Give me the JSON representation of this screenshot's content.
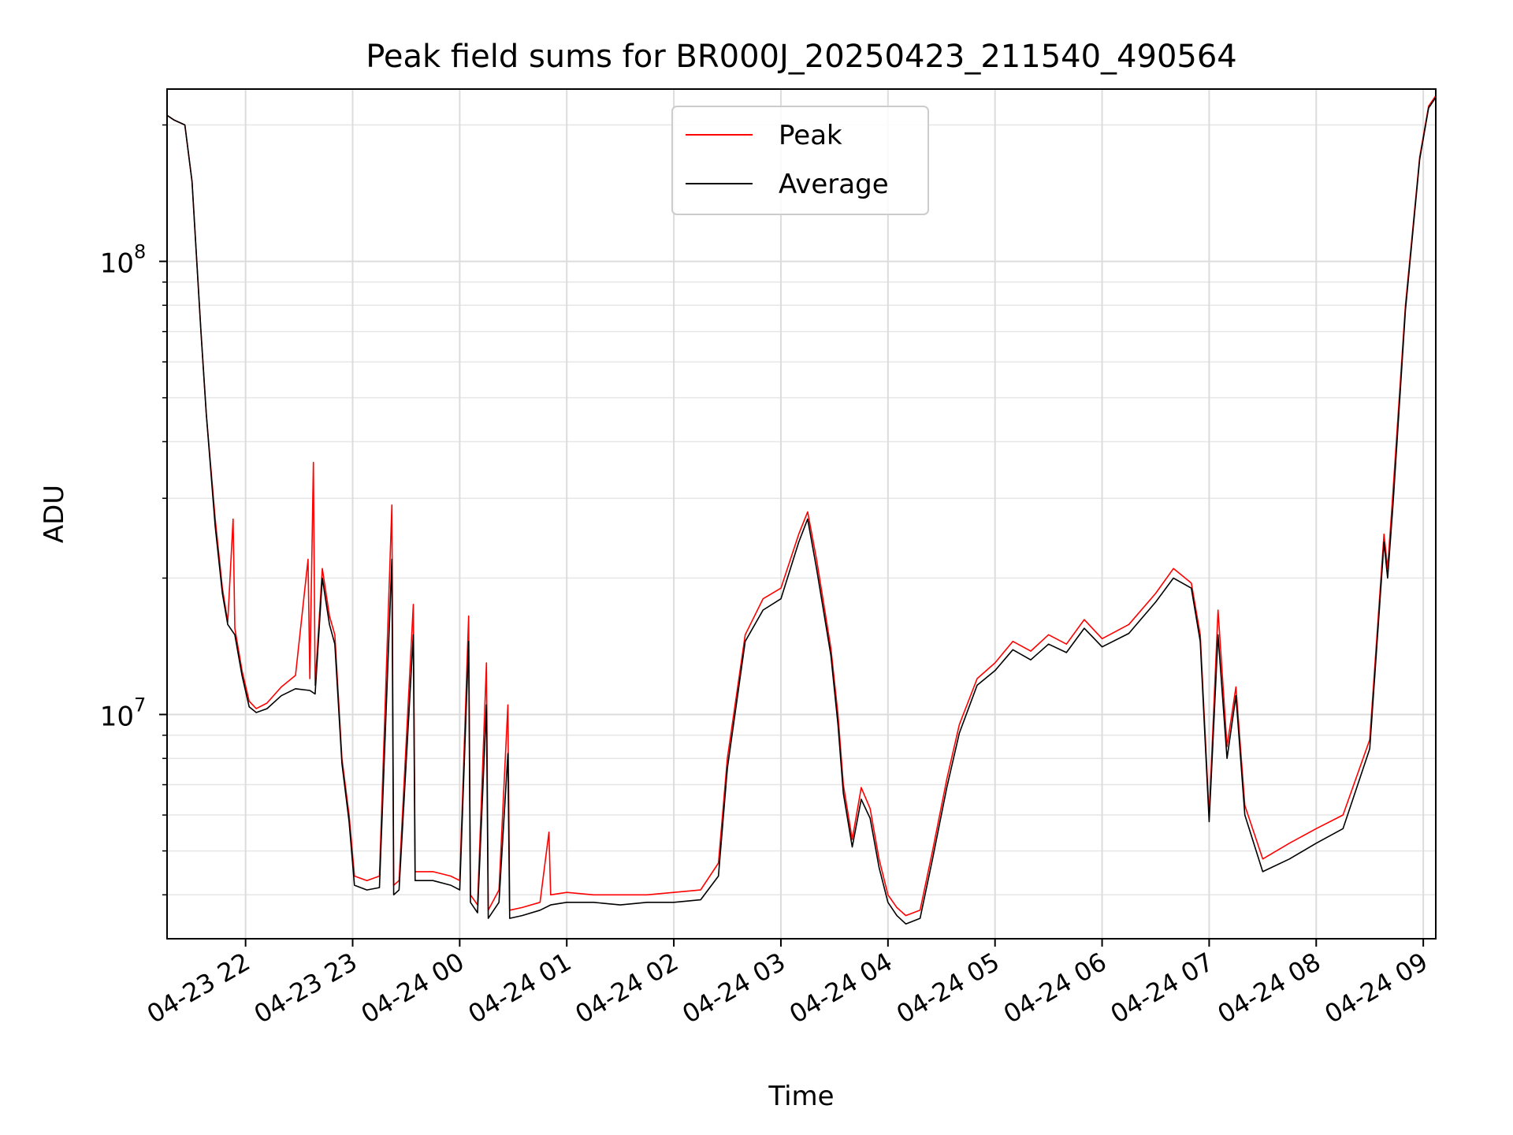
{
  "chart_data": {
    "type": "line",
    "title": "Peak field sums for BR000J_20250423_211540_490564",
    "xlabel": "Time",
    "ylabel": "ADU",
    "yscale": "log",
    "ylim": [
      3200000,
      240000000
    ],
    "xlim": [
      "2025-04-23 21:16",
      "2025-04-24 09:07"
    ],
    "grid": {
      "major": true,
      "minor_y": true
    },
    "legend_position": "upper center",
    "x_ticks": [
      {
        "t": "2025-04-23 22:00",
        "label": "04-23 22"
      },
      {
        "t": "2025-04-23 23:00",
        "label": "04-23 23"
      },
      {
        "t": "2025-04-24 00:00",
        "label": "04-24 00"
      },
      {
        "t": "2025-04-24 01:00",
        "label": "04-24 01"
      },
      {
        "t": "2025-04-24 02:00",
        "label": "04-24 02"
      },
      {
        "t": "2025-04-24 03:00",
        "label": "04-24 03"
      },
      {
        "t": "2025-04-24 04:00",
        "label": "04-24 04"
      },
      {
        "t": "2025-04-24 05:00",
        "label": "04-24 05"
      },
      {
        "t": "2025-04-24 06:00",
        "label": "04-24 06"
      },
      {
        "t": "2025-04-24 07:00",
        "label": "04-24 07"
      },
      {
        "t": "2025-04-24 08:00",
        "label": "04-24 08"
      },
      {
        "t": "2025-04-24 09:00",
        "label": "04-24 09"
      }
    ],
    "y_ticks": [
      {
        "value": 10000000,
        "base": "10",
        "exp": "7"
      },
      {
        "value": 100000000,
        "base": "10",
        "exp": "8"
      }
    ],
    "series": [
      {
        "name": "Peak",
        "color": "#ff0000",
        "points": [
          [
            "2025-04-23 21:16",
            210000000
          ],
          [
            "2025-04-23 21:20",
            205000000
          ],
          [
            "2025-04-23 21:26",
            200000000
          ],
          [
            "2025-04-23 21:30",
            150000000
          ],
          [
            "2025-04-23 21:35",
            70000000
          ],
          [
            "2025-04-23 21:38",
            46000000
          ],
          [
            "2025-04-23 21:43",
            27000000
          ],
          [
            "2025-04-23 21:47",
            19000000
          ],
          [
            "2025-04-23 21:50",
            16000000
          ],
          [
            "2025-04-23 21:53",
            27000000
          ],
          [
            "2025-04-23 21:54",
            15500000
          ],
          [
            "2025-04-23 21:58",
            12500000
          ],
          [
            "2025-04-23 22:02",
            10700000
          ],
          [
            "2025-04-23 22:06",
            10300000
          ],
          [
            "2025-04-23 22:12",
            10600000
          ],
          [
            "2025-04-23 22:20",
            11500000
          ],
          [
            "2025-04-23 22:28",
            12200000
          ],
          [
            "2025-04-23 22:35",
            22000000
          ],
          [
            "2025-04-23 22:36",
            12000000
          ],
          [
            "2025-04-23 22:38",
            36000000
          ],
          [
            "2025-04-23 22:39",
            11600000
          ],
          [
            "2025-04-23 22:43",
            21000000
          ],
          [
            "2025-04-23 22:47",
            16500000
          ],
          [
            "2025-04-23 22:50",
            15000000
          ],
          [
            "2025-04-23 22:54",
            8000000
          ],
          [
            "2025-04-23 22:58",
            6000000
          ],
          [
            "2025-04-23 23:01",
            4400000
          ],
          [
            "2025-04-23 23:08",
            4300000
          ],
          [
            "2025-04-23 23:15",
            4400000
          ],
          [
            "2025-04-23 23:22",
            29000000
          ],
          [
            "2025-04-23 23:23",
            4200000
          ],
          [
            "2025-04-23 23:26",
            4300000
          ],
          [
            "2025-04-23 23:34",
            17500000
          ],
          [
            "2025-04-23 23:35",
            4500000
          ],
          [
            "2025-04-23 23:45",
            4500000
          ],
          [
            "2025-04-23 23:55",
            4400000
          ],
          [
            "2025-04-24 00:00",
            4300000
          ],
          [
            "2025-04-24 00:05",
            16500000
          ],
          [
            "2025-04-24 00:06",
            4000000
          ],
          [
            "2025-04-24 00:10",
            3800000
          ],
          [
            "2025-04-24 00:15",
            13000000
          ],
          [
            "2025-04-24 00:16",
            3700000
          ],
          [
            "2025-04-24 00:22",
            4100000
          ],
          [
            "2025-04-24 00:27",
            10500000
          ],
          [
            "2025-04-24 00:28",
            3700000
          ],
          [
            "2025-04-24 00:35",
            3750000
          ],
          [
            "2025-04-24 00:45",
            3850000
          ],
          [
            "2025-04-24 00:50",
            5500000
          ],
          [
            "2025-04-24 00:51",
            4000000
          ],
          [
            "2025-04-24 01:00",
            4050000
          ],
          [
            "2025-04-24 01:15",
            4000000
          ],
          [
            "2025-04-24 01:30",
            4000000
          ],
          [
            "2025-04-24 01:45",
            4000000
          ],
          [
            "2025-04-24 02:00",
            4050000
          ],
          [
            "2025-04-24 02:15",
            4100000
          ],
          [
            "2025-04-24 02:25",
            4700000
          ],
          [
            "2025-04-24 02:30",
            8000000
          ],
          [
            "2025-04-24 02:40",
            15000000
          ],
          [
            "2025-04-24 02:50",
            18000000
          ],
          [
            "2025-04-24 03:00",
            19000000
          ],
          [
            "2025-04-24 03:10",
            25000000
          ],
          [
            "2025-04-24 03:15",
            28000000
          ],
          [
            "2025-04-24 03:20",
            22000000
          ],
          [
            "2025-04-24 03:28",
            14000000
          ],
          [
            "2025-04-24 03:32",
            10000000
          ],
          [
            "2025-04-24 03:35",
            7000000
          ],
          [
            "2025-04-24 03:40",
            5300000
          ],
          [
            "2025-04-24 03:45",
            6900000
          ],
          [
            "2025-04-24 03:50",
            6200000
          ],
          [
            "2025-04-24 03:55",
            4800000
          ],
          [
            "2025-04-24 04:00",
            4000000
          ],
          [
            "2025-04-24 04:05",
            3750000
          ],
          [
            "2025-04-24 04:10",
            3600000
          ],
          [
            "2025-04-24 04:18",
            3700000
          ],
          [
            "2025-04-24 04:25",
            5000000
          ],
          [
            "2025-04-24 04:33",
            7200000
          ],
          [
            "2025-04-24 04:40",
            9500000
          ],
          [
            "2025-04-24 04:50",
            12000000
          ],
          [
            "2025-04-24 05:00",
            13000000
          ],
          [
            "2025-04-24 05:10",
            14500000
          ],
          [
            "2025-04-24 05:20",
            13800000
          ],
          [
            "2025-04-24 05:30",
            15000000
          ],
          [
            "2025-04-24 05:40",
            14300000
          ],
          [
            "2025-04-24 05:50",
            16200000
          ],
          [
            "2025-04-24 06:00",
            14700000
          ],
          [
            "2025-04-24 06:15",
            15800000
          ],
          [
            "2025-04-24 06:30",
            18500000
          ],
          [
            "2025-04-24 06:40",
            21000000
          ],
          [
            "2025-04-24 06:50",
            19500000
          ],
          [
            "2025-04-24 06:55",
            15000000
          ],
          [
            "2025-04-24 07:00",
            6000000
          ],
          [
            "2025-04-24 07:05",
            17000000
          ],
          [
            "2025-04-24 07:10",
            8500000
          ],
          [
            "2025-04-24 07:15",
            11500000
          ],
          [
            "2025-04-24 07:20",
            6300000
          ],
          [
            "2025-04-24 07:30",
            4800000
          ],
          [
            "2025-04-24 07:45",
            5200000
          ],
          [
            "2025-04-24 08:00",
            5600000
          ],
          [
            "2025-04-24 08:15",
            6000000
          ],
          [
            "2025-04-24 08:30",
            8800000
          ],
          [
            "2025-04-24 08:38",
            25000000
          ],
          [
            "2025-04-24 08:40",
            21000000
          ],
          [
            "2025-04-24 08:43",
            31000000
          ],
          [
            "2025-04-24 08:50",
            80000000
          ],
          [
            "2025-04-24 08:58",
            170000000
          ],
          [
            "2025-04-24 09:03",
            220000000
          ],
          [
            "2025-04-24 09:07",
            232000000
          ]
        ]
      },
      {
        "name": "Average",
        "color": "#000000",
        "points": [
          [
            "2025-04-23 21:16",
            210000000
          ],
          [
            "2025-04-23 21:20",
            205000000
          ],
          [
            "2025-04-23 21:26",
            200000000
          ],
          [
            "2025-04-23 21:30",
            150000000
          ],
          [
            "2025-04-23 21:35",
            70000000
          ],
          [
            "2025-04-23 21:38",
            46000000
          ],
          [
            "2025-04-23 21:43",
            26000000
          ],
          [
            "2025-04-23 21:47",
            18500000
          ],
          [
            "2025-04-23 21:50",
            15800000
          ],
          [
            "2025-04-23 21:54",
            15000000
          ],
          [
            "2025-04-23 21:58",
            12200000
          ],
          [
            "2025-04-23 22:02",
            10400000
          ],
          [
            "2025-04-23 22:06",
            10100000
          ],
          [
            "2025-04-23 22:12",
            10300000
          ],
          [
            "2025-04-23 22:20",
            11000000
          ],
          [
            "2025-04-23 22:28",
            11400000
          ],
          [
            "2025-04-23 22:36",
            11300000
          ],
          [
            "2025-04-23 22:39",
            11100000
          ],
          [
            "2025-04-23 22:43",
            20000000
          ],
          [
            "2025-04-23 22:47",
            15800000
          ],
          [
            "2025-04-23 22:50",
            14300000
          ],
          [
            "2025-04-23 22:54",
            7800000
          ],
          [
            "2025-04-23 22:58",
            5800000
          ],
          [
            "2025-04-23 23:01",
            4200000
          ],
          [
            "2025-04-23 23:08",
            4100000
          ],
          [
            "2025-04-23 23:15",
            4150000
          ],
          [
            "2025-04-23 23:22",
            22000000
          ],
          [
            "2025-04-23 23:23",
            4000000
          ],
          [
            "2025-04-23 23:26",
            4100000
          ],
          [
            "2025-04-23 23:34",
            15000000
          ],
          [
            "2025-04-23 23:35",
            4300000
          ],
          [
            "2025-04-23 23:45",
            4300000
          ],
          [
            "2025-04-23 23:55",
            4200000
          ],
          [
            "2025-04-24 00:00",
            4100000
          ],
          [
            "2025-04-24 00:05",
            14500000
          ],
          [
            "2025-04-24 00:06",
            3850000
          ],
          [
            "2025-04-24 00:10",
            3650000
          ],
          [
            "2025-04-24 00:15",
            10500000
          ],
          [
            "2025-04-24 00:16",
            3550000
          ],
          [
            "2025-04-24 00:22",
            3850000
          ],
          [
            "2025-04-24 00:27",
            8200000
          ],
          [
            "2025-04-24 00:28",
            3550000
          ],
          [
            "2025-04-24 00:35",
            3600000
          ],
          [
            "2025-04-24 00:45",
            3700000
          ],
          [
            "2025-04-24 00:51",
            3800000
          ],
          [
            "2025-04-24 01:00",
            3850000
          ],
          [
            "2025-04-24 01:15",
            3850000
          ],
          [
            "2025-04-24 01:30",
            3800000
          ],
          [
            "2025-04-24 01:45",
            3850000
          ],
          [
            "2025-04-24 02:00",
            3850000
          ],
          [
            "2025-04-24 02:15",
            3900000
          ],
          [
            "2025-04-24 02:25",
            4400000
          ],
          [
            "2025-04-24 02:30",
            7600000
          ],
          [
            "2025-04-24 02:40",
            14500000
          ],
          [
            "2025-04-24 02:50",
            17000000
          ],
          [
            "2025-04-24 03:00",
            18000000
          ],
          [
            "2025-04-24 03:10",
            24000000
          ],
          [
            "2025-04-24 03:15",
            27000000
          ],
          [
            "2025-04-24 03:20",
            21000000
          ],
          [
            "2025-04-24 03:28",
            13500000
          ],
          [
            "2025-04-24 03:32",
            9500000
          ],
          [
            "2025-04-24 03:35",
            6700000
          ],
          [
            "2025-04-24 03:40",
            5100000
          ],
          [
            "2025-04-24 03:45",
            6500000
          ],
          [
            "2025-04-24 03:50",
            5900000
          ],
          [
            "2025-04-24 03:55",
            4600000
          ],
          [
            "2025-04-24 04:00",
            3850000
          ],
          [
            "2025-04-24 04:05",
            3600000
          ],
          [
            "2025-04-24 04:10",
            3450000
          ],
          [
            "2025-04-24 04:18",
            3550000
          ],
          [
            "2025-04-24 04:25",
            4800000
          ],
          [
            "2025-04-24 04:33",
            6900000
          ],
          [
            "2025-04-24 04:40",
            9100000
          ],
          [
            "2025-04-24 04:50",
            11600000
          ],
          [
            "2025-04-24 05:00",
            12500000
          ],
          [
            "2025-04-24 05:10",
            13900000
          ],
          [
            "2025-04-24 05:20",
            13200000
          ],
          [
            "2025-04-24 05:30",
            14300000
          ],
          [
            "2025-04-24 05:40",
            13700000
          ],
          [
            "2025-04-24 05:50",
            15500000
          ],
          [
            "2025-04-24 06:00",
            14100000
          ],
          [
            "2025-04-24 06:15",
            15100000
          ],
          [
            "2025-04-24 06:30",
            17700000
          ],
          [
            "2025-04-24 06:40",
            20000000
          ],
          [
            "2025-04-24 06:50",
            19000000
          ],
          [
            "2025-04-24 06:55",
            14500000
          ],
          [
            "2025-04-24 07:00",
            5800000
          ],
          [
            "2025-04-24 07:05",
            15000000
          ],
          [
            "2025-04-24 07:10",
            8000000
          ],
          [
            "2025-04-24 07:15",
            11000000
          ],
          [
            "2025-04-24 07:20",
            6000000
          ],
          [
            "2025-04-24 07:30",
            4500000
          ],
          [
            "2025-04-24 07:45",
            4800000
          ],
          [
            "2025-04-24 08:00",
            5200000
          ],
          [
            "2025-04-24 08:15",
            5600000
          ],
          [
            "2025-04-24 08:30",
            8400000
          ],
          [
            "2025-04-24 08:38",
            24000000
          ],
          [
            "2025-04-24 08:40",
            20000000
          ],
          [
            "2025-04-24 08:43",
            29000000
          ],
          [
            "2025-04-24 08:50",
            78000000
          ],
          [
            "2025-04-24 08:58",
            168000000
          ],
          [
            "2025-04-24 09:03",
            218000000
          ],
          [
            "2025-04-24 09:07",
            230000000
          ]
        ]
      }
    ]
  }
}
